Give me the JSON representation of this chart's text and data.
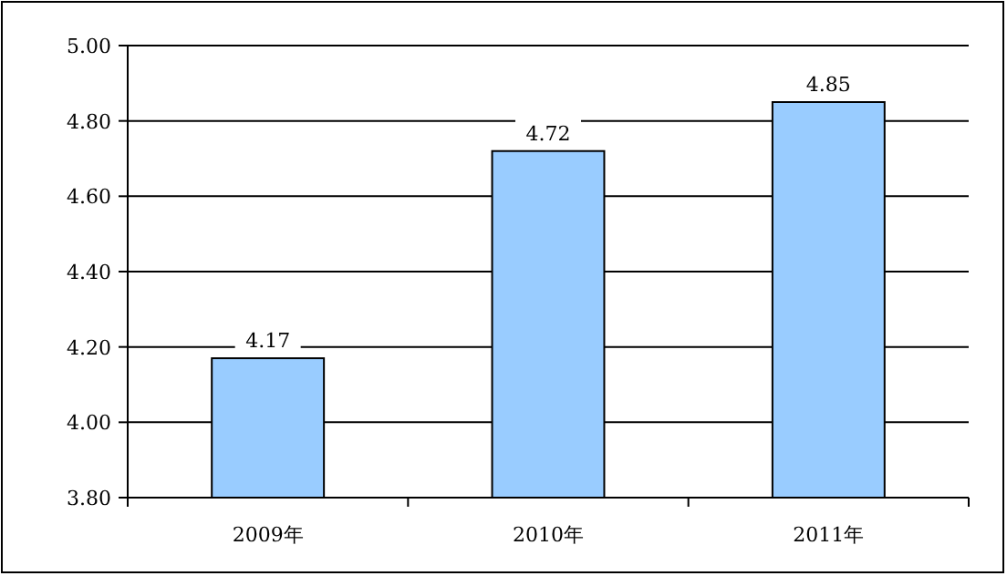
{
  "chart_data": {
    "type": "bar",
    "categories": [
      "2009年",
      "2010年",
      "2011年"
    ],
    "values": [
      4.17,
      4.72,
      4.85
    ],
    "color": "#99ccff",
    "ylim": [
      3.8,
      5.0
    ],
    "yticks": [
      {
        "value": 3.8,
        "label": "3.80"
      },
      {
        "value": 4.0,
        "label": "4.00"
      },
      {
        "value": 4.2,
        "label": "4.20"
      },
      {
        "value": 4.4,
        "label": "4.40"
      },
      {
        "value": 4.6,
        "label": "4.60"
      },
      {
        "value": 4.8,
        "label": "4.80"
      },
      {
        "value": 5.0,
        "label": "5.00"
      }
    ],
    "grid": "y",
    "data_labels": true
  }
}
